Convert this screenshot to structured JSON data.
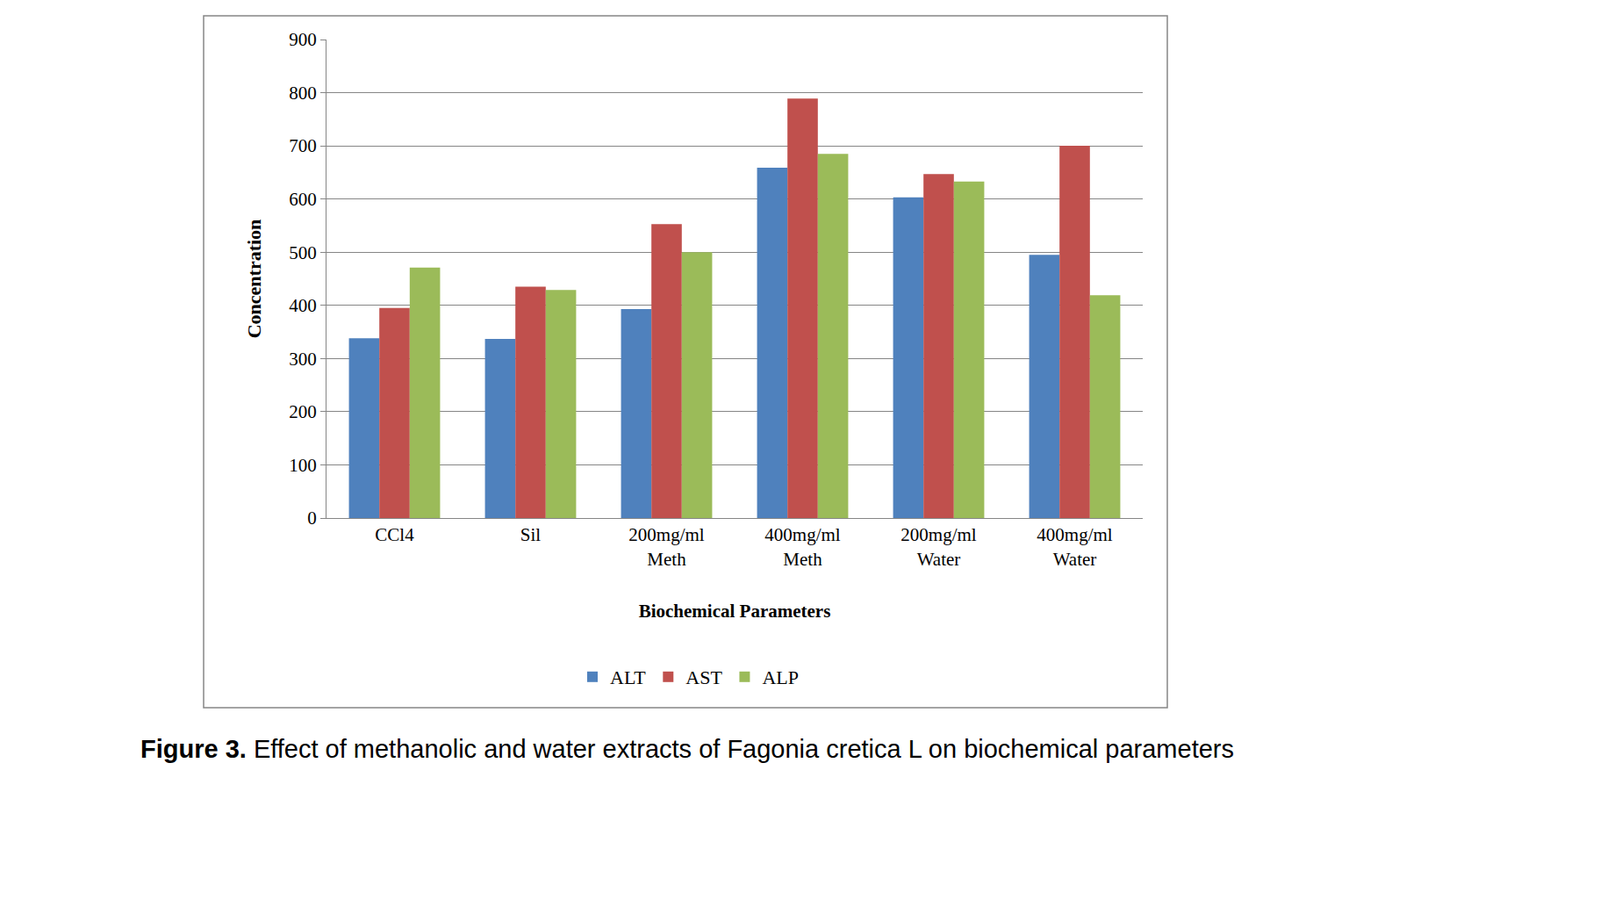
{
  "chart_data": {
    "type": "bar",
    "title": "Figure 3. Effect of methanolic and water extracts of Fagonia cretica L on biochemical parameters",
    "x_label": "Biochemical Parameters",
    "y_label": "Concentration",
    "categories": [
      "CCl4",
      "Sil",
      "200mg/ml Meth",
      "400mg/ml Meth",
      "200mg/ml Water",
      "400mg/ml Water"
    ],
    "series": [
      {
        "name": "ALT",
        "color": "#4f81bd",
        "values": [
          338,
          337,
          393,
          659,
          603,
          495
        ]
      },
      {
        "name": "AST",
        "color": "#c0504d",
        "values": [
          395,
          435,
          553,
          789,
          647,
          700
        ]
      },
      {
        "name": "ALP",
        "color": "#9bbb59",
        "values": [
          471,
          429,
          500,
          685,
          633,
          419
        ]
      }
    ],
    "ylim": [
      0,
      900
    ],
    "yticks": [
      0,
      100,
      200,
      300,
      400,
      500,
      600,
      700,
      800,
      900
    ],
    "grid": true,
    "legend": "bottom"
  }
}
